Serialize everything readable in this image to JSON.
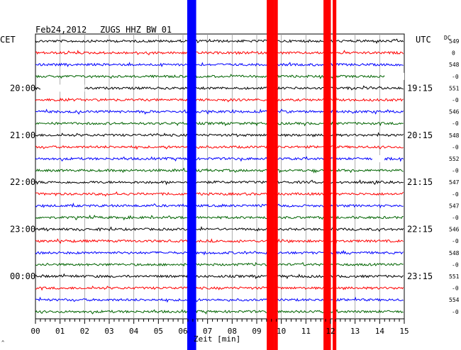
{
  "header": {
    "date": "Feb24,2012",
    "station": "ZUGS HHZ BW 01",
    "left_zone": "CET",
    "right_zone": "UTC",
    "dc_label": "DC"
  },
  "chart_data": {
    "type": "line",
    "title": "Feb24,2012   ZUGS HHZ BW 01",
    "xlabel": "Zeit [min]",
    "xlim": [
      0,
      15
    ],
    "x_ticks": [
      "00",
      "01",
      "02",
      "03",
      "04",
      "05",
      "06",
      "07",
      "08",
      "09",
      "10",
      "11",
      "12",
      "13",
      "14",
      "15"
    ],
    "trace_colors": [
      "#000000",
      "#ff0000",
      "#0000ff",
      "#006400"
    ],
    "row_count": 24,
    "left_time_labels": [
      {
        "row": 4,
        "label": "20:00"
      },
      {
        "row": 8,
        "label": "21:00"
      },
      {
        "row": 12,
        "label": "22:00"
      },
      {
        "row": 16,
        "label": "23:00"
      },
      {
        "row": 20,
        "label": "00:00"
      }
    ],
    "right_time_labels": [
      {
        "row": 4,
        "label": "19:15"
      },
      {
        "row": 8,
        "label": "20:15"
      },
      {
        "row": 12,
        "label": "21:15"
      },
      {
        "row": 16,
        "label": "22:15"
      },
      {
        "row": 20,
        "label": "23:15"
      }
    ],
    "dc_offsets": [
      "549",
      "0",
      "548",
      "-0",
      "551",
      "-0",
      "546",
      "-0",
      "548",
      "-0",
      "552",
      "-0",
      "547",
      "-0",
      "547",
      "-0",
      "546",
      "-0",
      "548",
      "-0",
      "551",
      "-0",
      "554",
      "-0"
    ],
    "events": [
      {
        "minute": 6.3,
        "color": "#0000ff"
      },
      {
        "minute": 9.6,
        "color": "#ff0000"
      },
      {
        "minute": 11.9,
        "color": "#ff0000"
      }
    ],
    "gaps": [
      {
        "row": 3,
        "from_minute": 14.2,
        "to_minute": 15
      },
      {
        "row": 4,
        "from_minute": 0.2,
        "to_minute": 2.0
      },
      {
        "row": 10,
        "from_minute": 13.7,
        "to_minute": 14.2
      }
    ]
  }
}
